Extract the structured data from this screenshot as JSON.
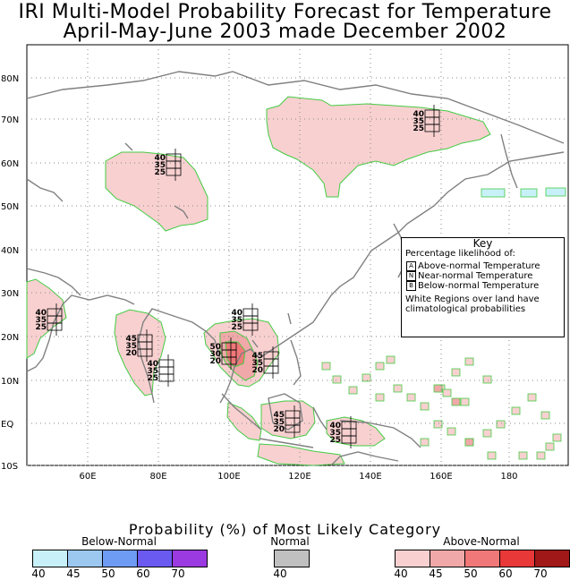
{
  "title": {
    "line1": "IRI Multi-Model Probability Forecast for Temperature",
    "line2": "April-May-June 2003 made December 2002"
  },
  "axes": {
    "lat_labels": [
      "80N",
      "70N",
      "60N",
      "50N",
      "40N",
      "30N",
      "20N",
      "10N",
      "EQ",
      "10S"
    ],
    "lon_labels": [
      "60E",
      "80E",
      "100E",
      "120E",
      "140E",
      "160E",
      "180"
    ]
  },
  "key": {
    "title": "Key",
    "subtitle": "Percentage likelihood of:",
    "above": "Above-normal Temperature",
    "near": "Near-normal Temperature",
    "below": "Below-normal Temperature",
    "above_letter": "A",
    "near_letter": "N",
    "below_letter": "B",
    "note_line1": "White Regions over land have",
    "note_line2": "climatological probabilities"
  },
  "probability_boxes": [
    {
      "region": "NE Siberia",
      "above": "40",
      "near": "35",
      "below": "25"
    },
    {
      "region": "Central Siberia",
      "above": "40",
      "near": "35",
      "below": "25"
    },
    {
      "region": "Arabia",
      "above": "40",
      "near": "35",
      "below": "25"
    },
    {
      "region": "India",
      "above": "45",
      "near": "35",
      "below": "20"
    },
    {
      "region": "Sri Lanka",
      "above": "40",
      "near": "35",
      "below": "25"
    },
    {
      "region": "Indochina north",
      "above": "40",
      "near": "35",
      "below": "25"
    },
    {
      "region": "Indochina",
      "above": "50",
      "near": "30",
      "below": "20"
    },
    {
      "region": "Philippines",
      "above": "45",
      "near": "35",
      "below": "20"
    },
    {
      "region": "Borneo",
      "above": "45",
      "near": "35",
      "below": "20"
    },
    {
      "region": "New Guinea",
      "above": "40",
      "near": "35",
      "below": "25"
    }
  ],
  "legend": {
    "title": "Probability (%) of Most Likely Category",
    "below_label": "Below-Normal",
    "normal_label": "Normal",
    "above_label": "Above-Normal",
    "below_ticks": [
      "40",
      "45",
      "50",
      "60",
      "70"
    ],
    "normal_ticks": [
      "40"
    ],
    "above_ticks": [
      "40",
      "45",
      "50",
      "60",
      "70"
    ],
    "below_colors": [
      "#c8f0f8",
      "#9cc8f0",
      "#6e9cf4",
      "#6a5af0",
      "#9a3ae0"
    ],
    "normal_colors": [
      "#c0c0c0"
    ],
    "above_colors": [
      "#f8d0d0",
      "#f0a8a8",
      "#f07878",
      "#e83838",
      "#a01818"
    ]
  },
  "colors": {
    "coast": "#808080",
    "grid": "#888888",
    "region_border": "#44cc44",
    "above40": "#f8d0d0",
    "above45": "#f0a8a8",
    "above50": "#f07878",
    "below40": "#c8f0f8"
  }
}
